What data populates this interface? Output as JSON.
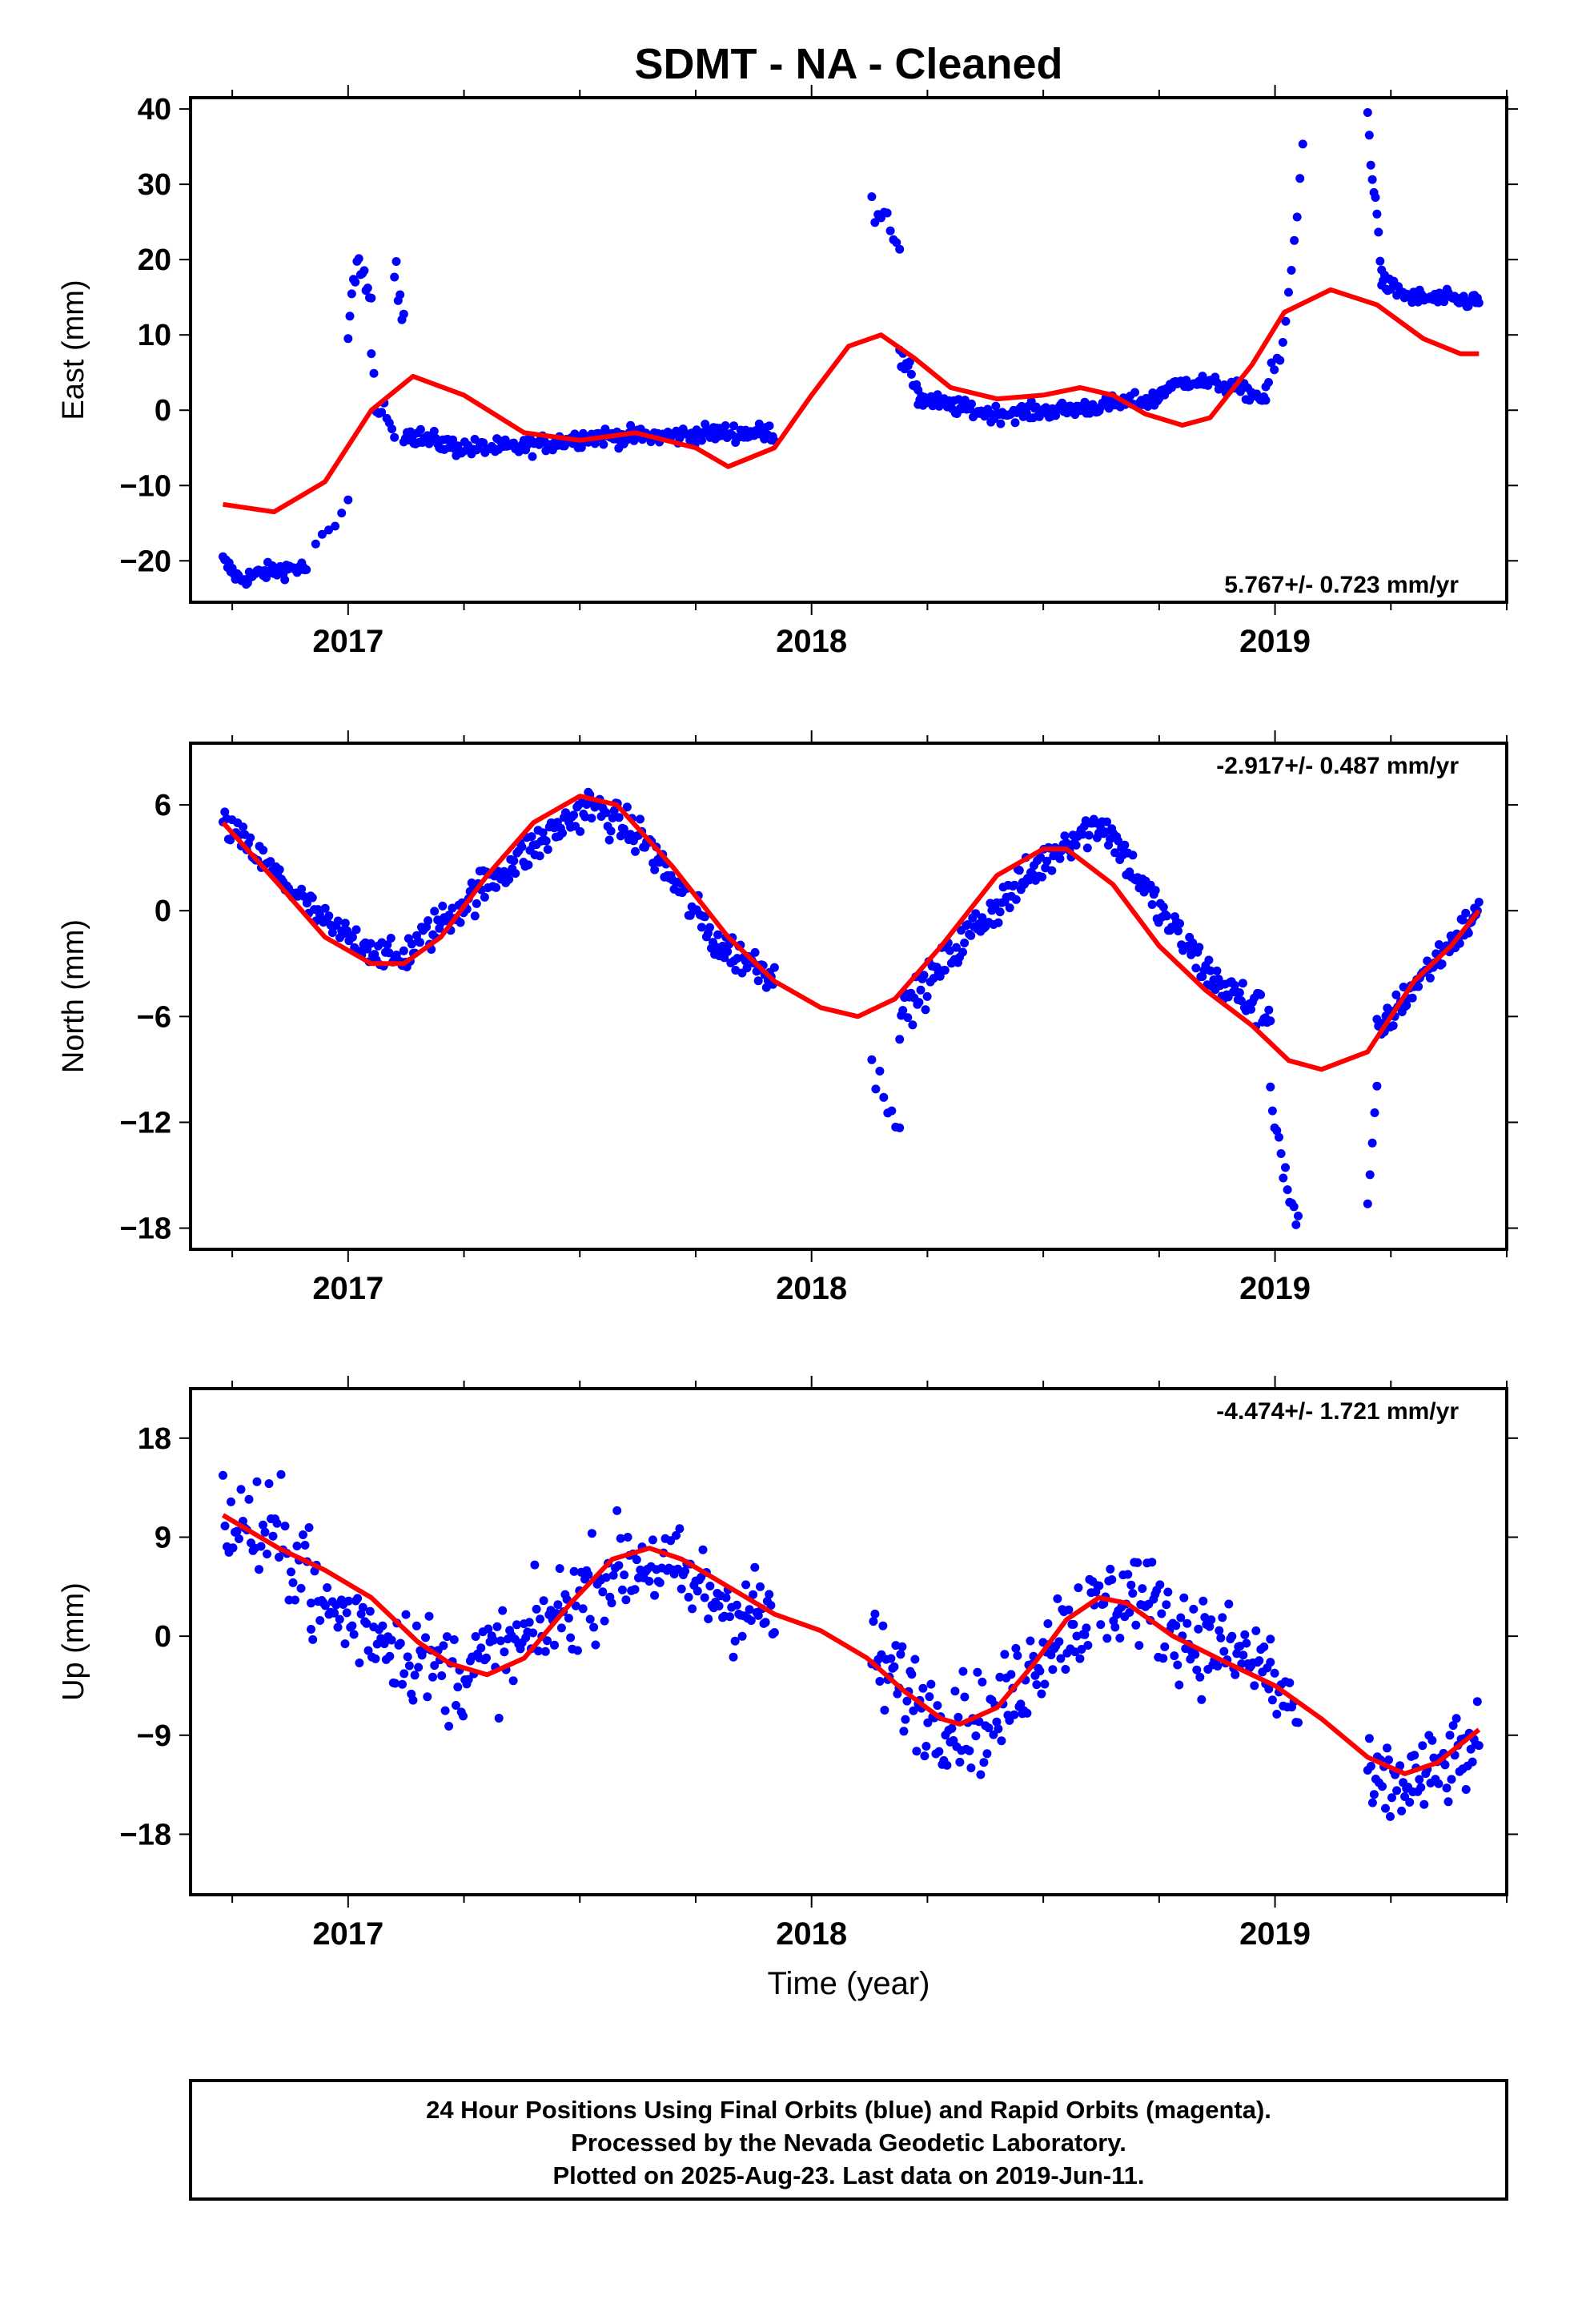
{
  "title": "SDMT  - NA - Cleaned",
  "footer": {
    "lines": [
      "24 Hour Positions Using Final Orbits (blue) and Rapid Orbits (magenta).",
      "Processed by the Nevada Geodetic Laboratory.",
      "Plotted on 2025-Aug-23. Last data on 2019-Jun-11."
    ]
  },
  "colors": {
    "data": "#0000ff",
    "model": "#ff0000",
    "axes": "#000000"
  },
  "chart_data": [
    {
      "type": "scatter",
      "ylabel": "East (mm)",
      "rate_text": "5.767+/- 0.723 mm/yr",
      "rate_position": "bottom-right",
      "xlim": [
        2016.66,
        2019.5
      ],
      "ylim": [
        -25.5,
        41.5
      ],
      "yticks": [
        40,
        30,
        20,
        10,
        0,
        -10,
        -20
      ],
      "ytick_labels": [
        "40",
        "30",
        "20",
        "10",
        "0",
        "−10",
        "−20"
      ],
      "xticks": [
        2017,
        2018,
        2019
      ],
      "xtick_labels": [
        "2017",
        "2018",
        "2019"
      ],
      "data_segments": [
        {
          "t0": 2016.73,
          "t1": 2016.91,
          "pts": [
            [
              0,
              -20
            ],
            [
              0.2,
              -22.5
            ],
            [
              0.5,
              -21.5
            ],
            [
              0.8,
              -21
            ],
            [
              1,
              -21
            ]
          ],
          "noise": 1.0,
          "n": 55
        },
        {
          "t0": 2016.93,
          "t1": 2017.0,
          "pts": [
            [
              0,
              -18
            ],
            [
              0.5,
              -16
            ],
            [
              1,
              -12.5
            ]
          ],
          "noise": 0.8,
          "n": 6
        },
        {
          "t0": 2017.0,
          "t1": 2017.05,
          "pts": [
            [
              0,
              10
            ],
            [
              0.4,
              21
            ],
            [
              1,
              14
            ]
          ],
          "noise": 2.0,
          "n": 14
        },
        {
          "t0": 2017.05,
          "t1": 2017.1,
          "pts": [
            [
              0,
              6
            ],
            [
              0.4,
              -1
            ],
            [
              1,
              -3
            ]
          ],
          "noise": 2.0,
          "n": 10
        },
        {
          "t0": 2017.1,
          "t1": 2017.12,
          "pts": [
            [
              0,
              18
            ],
            [
              1,
              13
            ]
          ],
          "noise": 2.5,
          "n": 6
        },
        {
          "t0": 2017.12,
          "t1": 2017.92,
          "pts": [
            [
              0,
              -3
            ],
            [
              0.15,
              -5
            ],
            [
              0.3,
              -5
            ],
            [
              0.5,
              -3.5
            ],
            [
              0.7,
              -3.5
            ],
            [
              0.85,
              -3
            ],
            [
              1,
              -3
            ]
          ],
          "noise": 1.1,
          "n": 220
        },
        {
          "t0": 2018.13,
          "t1": 2018.19,
          "pts": [
            [
              0,
              27
            ],
            [
              0.6,
              26
            ],
            [
              1,
              22
            ]
          ],
          "noise": 2.0,
          "n": 10
        },
        {
          "t0": 2018.19,
          "t1": 2018.23,
          "pts": [
            [
              0,
              7
            ],
            [
              1,
              3
            ]
          ],
          "noise": 1.2,
          "n": 12
        },
        {
          "t0": 2018.23,
          "t1": 2018.75,
          "pts": [
            [
              0,
              1.5
            ],
            [
              0.3,
              -0.5
            ],
            [
              0.6,
              0
            ],
            [
              1,
              1.5
            ]
          ],
          "noise": 1.0,
          "n": 150
        },
        {
          "t0": 2018.75,
          "t1": 2018.98,
          "pts": [
            [
              0,
              2.5
            ],
            [
              0.3,
              4
            ],
            [
              0.7,
              3
            ],
            [
              1,
              1.5
            ]
          ],
          "noise": 0.9,
          "n": 60
        },
        {
          "t0": 2018.98,
          "t1": 2019.06,
          "pts": [
            [
              0,
              3
            ],
            [
              0.4,
              7
            ],
            [
              0.7,
              18
            ],
            [
              1,
              35
            ]
          ],
          "noise": 1.5,
          "n": 14
        },
        {
          "t0": 2019.2,
          "t1": 2019.23,
          "pts": [
            [
              0,
              39
            ],
            [
              0.5,
              28
            ],
            [
              1,
              20
            ]
          ],
          "noise": 2.0,
          "n": 10
        },
        {
          "t0": 2019.23,
          "t1": 2019.44,
          "pts": [
            [
              0,
              17
            ],
            [
              0.3,
              15
            ],
            [
              1,
              14.5
            ]
          ],
          "noise": 1.0,
          "n": 65
        }
      ],
      "model_curve": [
        [
          2016.73,
          -12.5
        ],
        [
          2016.84,
          -13.5
        ],
        [
          2016.95,
          -9.5
        ],
        [
          2017.05,
          0
        ],
        [
          2017.14,
          4.5
        ],
        [
          2017.25,
          2
        ],
        [
          2017.38,
          -3
        ],
        [
          2017.5,
          -4
        ],
        [
          2017.62,
          -3
        ],
        [
          2017.75,
          -5
        ],
        [
          2017.82,
          -7.5
        ],
        [
          2017.92,
          -5
        ],
        [
          2018.0,
          2
        ],
        [
          2018.08,
          8.5
        ],
        [
          2018.15,
          10
        ],
        [
          2018.22,
          7
        ],
        [
          2018.3,
          3
        ],
        [
          2018.4,
          1.5
        ],
        [
          2018.5,
          2
        ],
        [
          2018.58,
          3
        ],
        [
          2018.65,
          2
        ],
        [
          2018.72,
          -0.5
        ],
        [
          2018.8,
          -2
        ],
        [
          2018.86,
          -1
        ],
        [
          2018.95,
          6
        ],
        [
          2019.02,
          13
        ],
        [
          2019.12,
          16
        ],
        [
          2019.22,
          14
        ],
        [
          2019.32,
          9.5
        ],
        [
          2019.4,
          7.5
        ],
        [
          2019.44,
          7.5
        ]
      ]
    },
    {
      "type": "scatter",
      "ylabel": "North (mm)",
      "rate_text": "-2.917+/- 0.487 mm/yr",
      "rate_position": "top-right",
      "xlim": [
        2016.66,
        2019.5
      ],
      "ylim": [
        -19.2,
        9.5
      ],
      "yticks": [
        6,
        0,
        -6,
        -12,
        -18
      ],
      "ytick_labels": [
        "6",
        "0",
        "−6",
        "−12",
        "−18"
      ],
      "xticks": [
        2017,
        2018,
        2019
      ],
      "xtick_labels": [
        "2017",
        "2018",
        "2019"
      ],
      "data_segments": [
        {
          "t0": 2016.73,
          "t1": 2017.12,
          "pts": [
            [
              0,
              5
            ],
            [
              0.3,
              2
            ],
            [
              0.6,
              -1
            ],
            [
              1,
              -3
            ]
          ],
          "noise": 0.8,
          "n": 100
        },
        {
          "t0": 2017.12,
          "t1": 2017.92,
          "pts": [
            [
              0,
              -2.5
            ],
            [
              0.25,
              2
            ],
            [
              0.5,
              6
            ],
            [
              0.65,
              4
            ],
            [
              0.85,
              -2
            ],
            [
              1,
              -3.5
            ]
          ],
          "noise": 1.0,
          "n": 230
        },
        {
          "t0": 2018.13,
          "t1": 2018.19,
          "pts": [
            [
              0,
              -9
            ],
            [
              0.5,
              -10.5
            ],
            [
              1,
              -12
            ]
          ],
          "noise": 0.8,
          "n": 8
        },
        {
          "t0": 2018.19,
          "t1": 2018.99,
          "pts": [
            [
              0,
              -6
            ],
            [
              0.2,
              -1
            ],
            [
              0.45,
              4
            ],
            [
              0.55,
              5
            ],
            [
              0.7,
              0
            ],
            [
              0.85,
              -4
            ],
            [
              1,
              -6
            ]
          ],
          "noise": 1.0,
          "n": 230
        },
        {
          "t0": 2018.99,
          "t1": 2019.05,
          "pts": [
            [
              0,
              -10
            ],
            [
              0.5,
              -15
            ],
            [
              1,
              -18
            ]
          ],
          "noise": 0.9,
          "n": 14
        },
        {
          "t0": 2019.2,
          "t1": 2019.22,
          "pts": [
            [
              0,
              -17
            ],
            [
              1,
              -10
            ]
          ],
          "noise": 0.8,
          "n": 5
        },
        {
          "t0": 2019.22,
          "t1": 2019.44,
          "pts": [
            [
              0,
              -7
            ],
            [
              0.4,
              -4
            ],
            [
              1,
              0
            ]
          ],
          "noise": 0.8,
          "n": 70
        }
      ],
      "model_curve": [
        [
          2016.73,
          5
        ],
        [
          2016.85,
          1.5
        ],
        [
          2016.95,
          -1.5
        ],
        [
          2017.05,
          -3
        ],
        [
          2017.12,
          -3
        ],
        [
          2017.2,
          -1.5
        ],
        [
          2017.3,
          2
        ],
        [
          2017.4,
          5
        ],
        [
          2017.5,
          6.5
        ],
        [
          2017.58,
          6
        ],
        [
          2017.7,
          2.5
        ],
        [
          2017.82,
          -1.5
        ],
        [
          2017.92,
          -4
        ],
        [
          2018.02,
          -5.5
        ],
        [
          2018.1,
          -6
        ],
        [
          2018.18,
          -5
        ],
        [
          2018.28,
          -2
        ],
        [
          2018.4,
          2
        ],
        [
          2018.5,
          3.5
        ],
        [
          2018.55,
          3.5
        ],
        [
          2018.65,
          1.5
        ],
        [
          2018.75,
          -2
        ],
        [
          2018.85,
          -4.5
        ],
        [
          2018.95,
          -6.5
        ],
        [
          2019.03,
          -8.5
        ],
        [
          2019.1,
          -9
        ],
        [
          2019.2,
          -8
        ],
        [
          2019.3,
          -4
        ],
        [
          2019.38,
          -2
        ],
        [
          2019.44,
          0
        ]
      ]
    },
    {
      "type": "scatter",
      "ylabel": "Up (mm)",
      "rate_text": "-4.474+/- 1.721 mm/yr",
      "rate_position": "top-right",
      "xlim": [
        2016.66,
        2019.5
      ],
      "ylim": [
        -23.5,
        22.5
      ],
      "yticks": [
        18,
        9,
        0,
        -9,
        -18
      ],
      "ytick_labels": [
        "18",
        "9",
        "0",
        "−9",
        "−18"
      ],
      "xticks": [
        2017,
        2018,
        2019
      ],
      "xtick_labels": [
        "2017",
        "2018",
        "2019"
      ],
      "data_segments": [
        {
          "t0": 2016.73,
          "t1": 2016.92,
          "pts": [
            [
              0,
              11
            ],
            [
              0.5,
              9
            ],
            [
              1,
              7
            ]
          ],
          "noise": 4.5,
          "n": 45
        },
        {
          "t0": 2016.92,
          "t1": 2017.92,
          "pts": [
            [
              0,
              3
            ],
            [
              0.12,
              1
            ],
            [
              0.3,
              -3.5
            ],
            [
              0.45,
              -1
            ],
            [
              0.65,
              6
            ],
            [
              0.72,
              7
            ],
            [
              0.9,
              3
            ],
            [
              1,
              2
            ]
          ],
          "noise": 4.0,
          "n": 260
        },
        {
          "t0": 2018.13,
          "t1": 2018.99,
          "pts": [
            [
              0,
              -2
            ],
            [
              0.15,
              -7
            ],
            [
              0.3,
              -8
            ],
            [
              0.45,
              0
            ],
            [
              0.65,
              4
            ],
            [
              0.8,
              0
            ],
            [
              1,
              -3
            ]
          ],
          "noise": 4.0,
          "n": 250
        },
        {
          "t0": 2018.99,
          "t1": 2019.05,
          "pts": [
            [
              0,
              -4
            ],
            [
              1,
              -7
            ]
          ],
          "noise": 4.0,
          "n": 14
        },
        {
          "t0": 2019.2,
          "t1": 2019.44,
          "pts": [
            [
              0,
              -14
            ],
            [
              0.5,
              -13
            ],
            [
              1,
              -10
            ]
          ],
          "noise": 3.5,
          "n": 70
        }
      ],
      "model_curve": [
        [
          2016.73,
          11
        ],
        [
          2016.85,
          8
        ],
        [
          2016.95,
          6
        ],
        [
          2017.05,
          3.5
        ],
        [
          2017.15,
          -0.5
        ],
        [
          2017.22,
          -2.5
        ],
        [
          2017.3,
          -3.5
        ],
        [
          2017.38,
          -2
        ],
        [
          2017.48,
          3
        ],
        [
          2017.57,
          7
        ],
        [
          2017.65,
          8
        ],
        [
          2017.72,
          7
        ],
        [
          2017.82,
          4.5
        ],
        [
          2017.92,
          2
        ],
        [
          2018.02,
          0.5
        ],
        [
          2018.12,
          -2
        ],
        [
          2018.2,
          -5
        ],
        [
          2018.28,
          -7.5
        ],
        [
          2018.32,
          -8
        ],
        [
          2018.4,
          -6.5
        ],
        [
          2018.48,
          -2.5
        ],
        [
          2018.55,
          1.5
        ],
        [
          2018.62,
          3.5
        ],
        [
          2018.68,
          3
        ],
        [
          2018.78,
          0
        ],
        [
          2018.9,
          -2.5
        ],
        [
          2019.0,
          -4.5
        ],
        [
          2019.1,
          -7.5
        ],
        [
          2019.2,
          -11
        ],
        [
          2019.28,
          -12.5
        ],
        [
          2019.35,
          -11.5
        ],
        [
          2019.44,
          -8.5
        ]
      ]
    }
  ],
  "xlabel": "Time (year)"
}
